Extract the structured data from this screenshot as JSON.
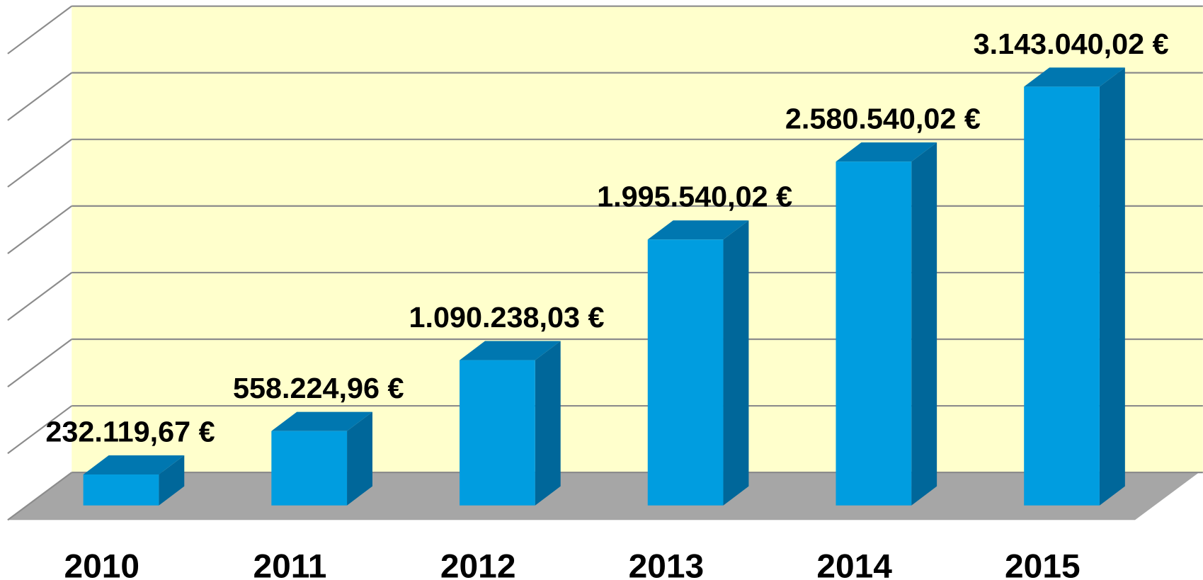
{
  "chart_data": {
    "type": "bar3d",
    "categories": [
      "2010",
      "2011",
      "2012",
      "2013",
      "2014",
      "2015"
    ],
    "values": [
      232119.67,
      558224.96,
      1090238.03,
      1995540.02,
      2580540.02,
      3143040.02
    ],
    "value_labels": [
      "232.119,67 €",
      "558.224,96 €",
      "1.090.238,03 €",
      "1.995.540,02 €",
      "2.580.540,02 €",
      "3.143.040,02 €"
    ],
    "color": "#009de0",
    "ylim": [
      0,
      3500000
    ],
    "yticks": [
      0,
      500000,
      1000000,
      1500000,
      2000000,
      2500000,
      3000000,
      3500000
    ],
    "grid": true
  }
}
